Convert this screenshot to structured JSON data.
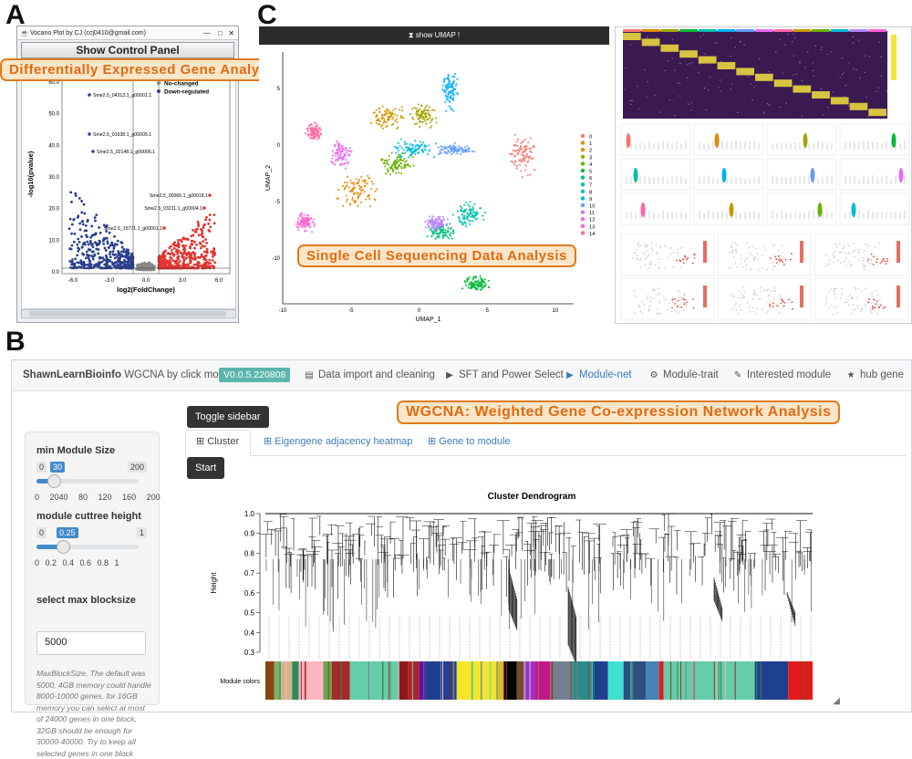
{
  "panel_letters": {
    "a": "A",
    "b": "B",
    "c": "C"
  },
  "annotations": {
    "a": "Differentially Expressed Gene Analysis",
    "c": "Single Cell Sequencing Data Analysis",
    "b": "WGCNA: Weighted Gene Co-expression Network Analysis"
  },
  "volcano_app": {
    "window_title": "Vocano Plot by CJ (ccj0410@gmail.com)",
    "control_button": "Show Control Panel",
    "legend": [
      "No-changed",
      "Down-regulated"
    ],
    "ylabel": "-log10(pvalue)",
    "xlabel": "log2(FoldChange)",
    "y_ticks": [
      "60.0",
      "50.0",
      "40.0",
      "30.0",
      "20.0",
      "10.0",
      "0.0"
    ],
    "x_ticks": [
      "-6.0",
      "-3.0",
      "0.0",
      "3.0",
      "6.0"
    ],
    "gene_labels": [
      "Sme2.5_04313.1_g00001.1",
      "Sme2.5_01638.1_g00005.1",
      "Sme2.5_02148.1_g00006.1",
      "Sme2.5_00065.1_g00018.1",
      "Sme2.5_03211.1_g00004.1",
      "Sme2.5_15771.1_g00001.1"
    ],
    "colors": {
      "up": "#e3342f",
      "down": "#2a3f8f",
      "none": "#888888"
    }
  },
  "umap": {
    "button": "show UMAP !",
    "xlabel": "UMAP_1",
    "ylabel": "UMAP_2",
    "x_ticks": [
      "-10",
      "-5",
      "0",
      "5",
      "10"
    ],
    "y_ticks": [
      "5",
      "0",
      "-5",
      "-10"
    ],
    "clusters": [
      "0",
      "1",
      "2",
      "3",
      "4",
      "5",
      "6",
      "7",
      "8",
      "9",
      "10",
      "11",
      "12",
      "13",
      "14"
    ],
    "cluster_colors": [
      "#f8766d",
      "#e58700",
      "#c99800",
      "#a3a500",
      "#6bb100",
      "#00ba38",
      "#00bf7d",
      "#00c0af",
      "#00bcd8",
      "#00b0f6",
      "#619cff",
      "#b983ff",
      "#e76bf3",
      "#fd61d1",
      "#ff67a4"
    ]
  },
  "wgcna_app": {
    "brand": "ShawnLearnBioinfo",
    "brand_sub": "WGCNA by click mouse",
    "version": "V0.0.5.220808",
    "nav": [
      {
        "label": "Data import and cleaning",
        "icon": "file-icon"
      },
      {
        "label": "SFT and Power Select",
        "icon": "play-circle-icon"
      },
      {
        "label": "Module-net",
        "icon": "play-circle-icon"
      },
      {
        "label": "Module-trait",
        "icon": "gear-icon"
      },
      {
        "label": "Interested module",
        "icon": "brush-icon"
      },
      {
        "label": "hub gene",
        "icon": "star-icon"
      }
    ],
    "sidebar": {
      "min_module": {
        "label": "min Module Size",
        "min": "0",
        "max": "200",
        "value": "30",
        "grid": "0 2040 80 120 160 200",
        "fraction": 0.15
      },
      "cuttree": {
        "label": "module cuttree height",
        "min": "0",
        "max": "1",
        "value": "0.25",
        "grid": "0 0.2 0.4 0.6 0.8 1",
        "fraction": 0.25
      },
      "blocksize_label": "select max blocksize",
      "blocksize_value": "5000",
      "help": "MaxBlockSize, The default was 5000, 4GB memory could handle 8000-10000 genes, for 16GB memory you can select at most of 24000 genes in one block, 32GB should be enough for 30000-40000. Try to keep all selected genes in one block"
    },
    "toggle_button": "Toggle sidebar",
    "tabs": [
      "Cluster",
      "Eigengene adjacency heatmap",
      "Gene to module"
    ],
    "start_button": "Start",
    "dendrogram": {
      "title": "Cluster Dendrogram",
      "ylabel": "Height",
      "y_ticks": [
        "1.0",
        "0.9",
        "0.8",
        "0.7",
        "0.6",
        "0.5",
        "0.4",
        "0.3"
      ],
      "colors_label": "Module colors"
    }
  }
}
